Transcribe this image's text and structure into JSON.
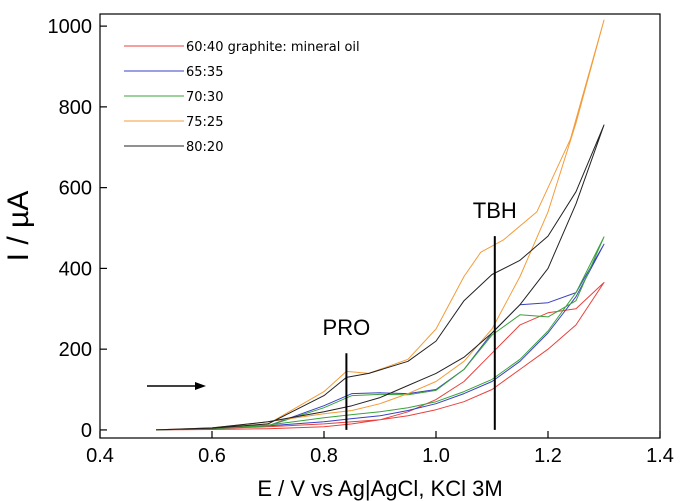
{
  "chart_data": {
    "type": "line",
    "xlabel": "E / V vs Ag|AgCl, KCl 3M",
    "ylabel": "I / µA",
    "xlim": [
      0.4,
      1.4
    ],
    "ylim": [
      -20,
      1030
    ],
    "xticks": [
      "0.4",
      "0.6",
      "0.8",
      "1.0",
      "1.2",
      "1.4"
    ],
    "yticks": [
      "0",
      "200",
      "400",
      "600",
      "800",
      "1000"
    ],
    "legend_position": "top-left",
    "series": [
      {
        "name": "60:40 graphite: mineral oil",
        "color": "#e8413c",
        "x": [
          0.5,
          0.6,
          0.7,
          0.8,
          0.85,
          0.9,
          0.95,
          1.0,
          1.05,
          1.1,
          1.15,
          1.2,
          1.25,
          1.3,
          1.3,
          1.25,
          1.2,
          1.15,
          1.1,
          1.05,
          1.0,
          0.95,
          0.9,
          0.85,
          0.8,
          0.7,
          0.6,
          0.5
        ],
        "y": [
          0,
          1,
          3,
          8,
          15,
          25,
          45,
          75,
          120,
          190,
          260,
          290,
          300,
          365,
          365,
          260,
          200,
          150,
          100,
          70,
          50,
          35,
          25,
          20,
          15,
          8,
          3,
          0
        ]
      },
      {
        "name": "65:35",
        "color": "#3a3fc4",
        "x": [
          0.5,
          0.6,
          0.7,
          0.8,
          0.85,
          0.9,
          0.95,
          1.0,
          1.05,
          1.1,
          1.15,
          1.2,
          1.25,
          1.3,
          1.3,
          1.25,
          1.2,
          1.15,
          1.1,
          1.05,
          1.0,
          0.95,
          0.9,
          0.85,
          0.8,
          0.7,
          0.6,
          0.5
        ],
        "y": [
          0,
          3,
          10,
          60,
          90,
          92,
          90,
          100,
          150,
          240,
          310,
          315,
          340,
          460,
          460,
          330,
          240,
          170,
          120,
          90,
          65,
          48,
          35,
          28,
          20,
          10,
          3,
          0
        ]
      },
      {
        "name": "70:30",
        "color": "#3aa33a",
        "x": [
          0.5,
          0.6,
          0.7,
          0.8,
          0.85,
          0.9,
          0.95,
          1.0,
          1.05,
          1.1,
          1.15,
          1.2,
          1.25,
          1.3,
          1.3,
          1.25,
          1.2,
          1.15,
          1.1,
          1.05,
          1.0,
          0.95,
          0.9,
          0.85,
          0.8,
          0.7,
          0.6,
          0.5
        ],
        "y": [
          0,
          3,
          10,
          55,
          85,
          88,
          87,
          98,
          150,
          235,
          285,
          280,
          320,
          478,
          478,
          340,
          245,
          175,
          125,
          95,
          70,
          55,
          45,
          38,
          30,
          12,
          3,
          0
        ]
      },
      {
        "name": "75:25",
        "color": "#f39c3a",
        "x": [
          0.5,
          0.6,
          0.7,
          0.8,
          0.84,
          0.88,
          0.95,
          1.0,
          1.05,
          1.08,
          1.12,
          1.18,
          1.24,
          1.3,
          1.3,
          1.25,
          1.2,
          1.15,
          1.1,
          1.05,
          1.0,
          0.95,
          0.9,
          0.85,
          0.8,
          0.7,
          0.6,
          0.5
        ],
        "y": [
          0,
          4,
          15,
          95,
          145,
          140,
          175,
          250,
          380,
          440,
          470,
          540,
          720,
          1015,
          1015,
          760,
          540,
          380,
          250,
          170,
          120,
          90,
          65,
          48,
          40,
          20,
          5,
          0
        ]
      },
      {
        "name": "80:20",
        "color": "#222222",
        "x": [
          0.5,
          0.6,
          0.7,
          0.8,
          0.84,
          0.88,
          0.95,
          1.0,
          1.05,
          1.1,
          1.15,
          1.2,
          1.25,
          1.3,
          1.3,
          1.25,
          1.2,
          1.15,
          1.1,
          1.05,
          1.0,
          0.95,
          0.9,
          0.85,
          0.8,
          0.7,
          0.6,
          0.5
        ],
        "y": [
          0,
          4,
          15,
          85,
          130,
          140,
          170,
          220,
          320,
          385,
          420,
          480,
          590,
          755,
          755,
          560,
          400,
          310,
          240,
          180,
          140,
          110,
          80,
          60,
          45,
          20,
          5,
          0
        ]
      }
    ],
    "annotations": [
      {
        "text": "PRO",
        "x": 0.84,
        "line_from": 0,
        "line_to": 190
      },
      {
        "text": "TBH",
        "x": 1.105,
        "line_from": 0,
        "line_to": 480
      }
    ]
  }
}
